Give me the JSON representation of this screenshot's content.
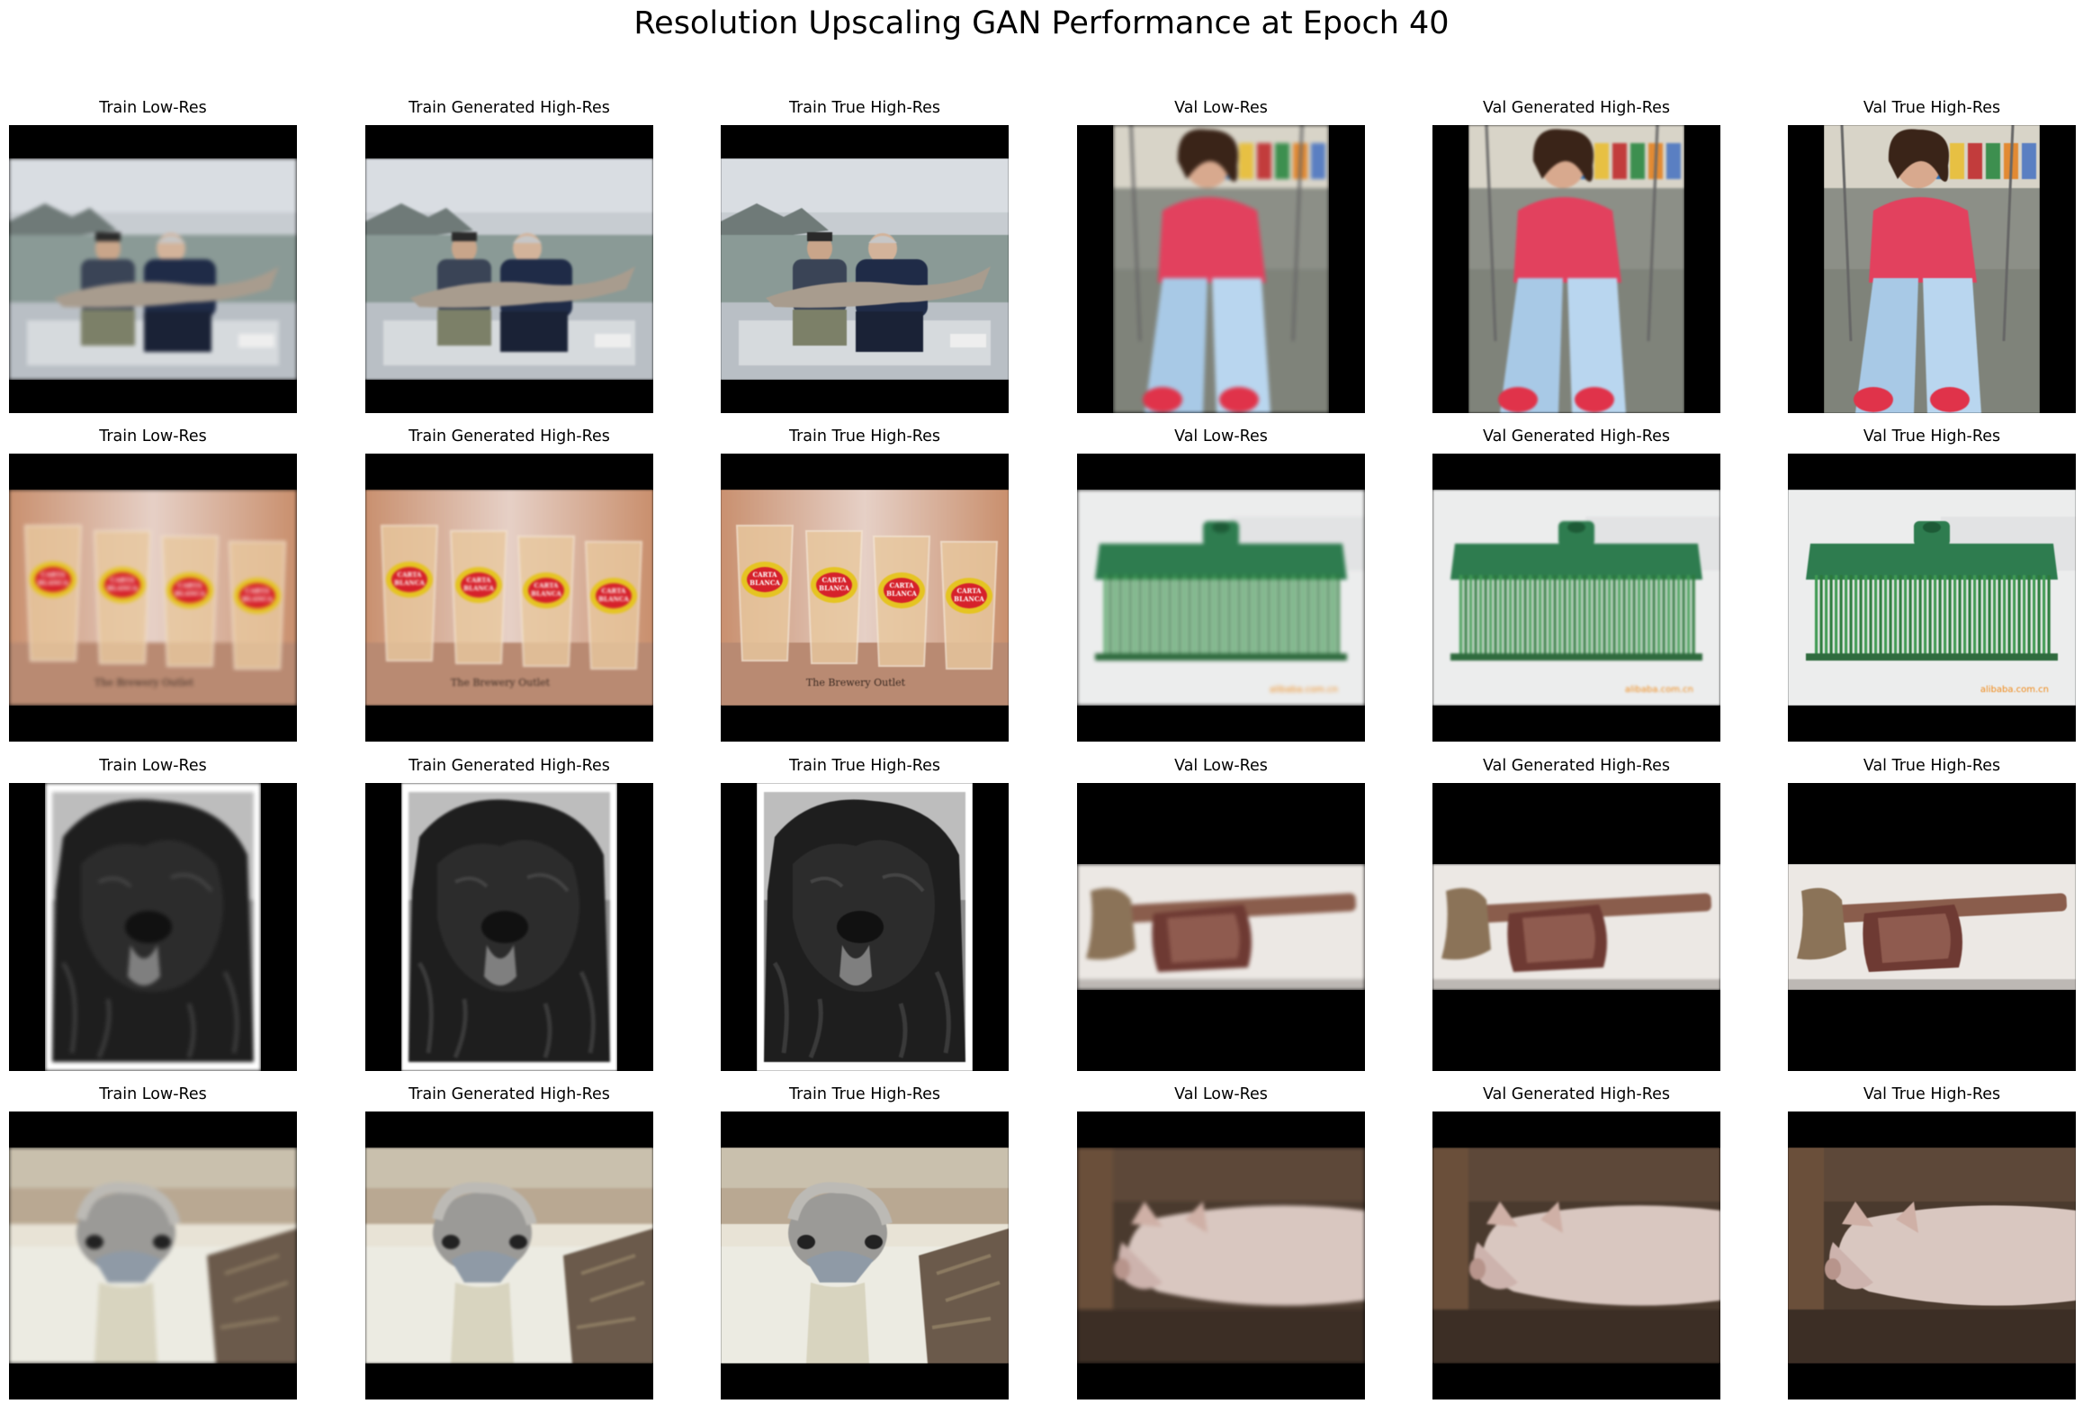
{
  "figure": {
    "title": "Resolution Upscaling GAN Performance at Epoch 40"
  },
  "rows": [
    {
      "panels": [
        {
          "title": "Train Low-Res",
          "subject": "fishermen-sturgeon-photo",
          "quality": "low"
        },
        {
          "title": "Train Generated High-Res",
          "subject": "fishermen-sturgeon-photo",
          "quality": "gen"
        },
        {
          "title": "Train True High-Res",
          "subject": "fishermen-sturgeon-photo",
          "quality": "true"
        },
        {
          "title": "Val Low-Res",
          "subject": "girl-on-swing-photo",
          "quality": "low"
        },
        {
          "title": "Val Generated High-Res",
          "subject": "girl-on-swing-photo",
          "quality": "gen"
        },
        {
          "title": "Val True High-Res",
          "subject": "girl-on-swing-photo",
          "quality": "true"
        }
      ]
    },
    {
      "panels": [
        {
          "title": "Train Low-Res",
          "subject": "beer-glasses-photo",
          "quality": "low"
        },
        {
          "title": "Train Generated High-Res",
          "subject": "beer-glasses-photo",
          "quality": "gen"
        },
        {
          "title": "Train True High-Res",
          "subject": "beer-glasses-photo",
          "quality": "true"
        },
        {
          "title": "Val Low-Res",
          "subject": "broom-head-photo",
          "quality": "low"
        },
        {
          "title": "Val Generated High-Res",
          "subject": "broom-head-photo",
          "quality": "gen"
        },
        {
          "title": "Val True High-Res",
          "subject": "broom-head-photo",
          "quality": "true"
        }
      ]
    },
    {
      "panels": [
        {
          "title": "Train Low-Res",
          "subject": "shaggy-dog-bw-photo",
          "quality": "low"
        },
        {
          "title": "Train Generated High-Res",
          "subject": "shaggy-dog-bw-photo",
          "quality": "gen"
        },
        {
          "title": "Train True High-Res",
          "subject": "shaggy-dog-bw-photo",
          "quality": "true"
        },
        {
          "title": "Val Low-Res",
          "subject": "axe-photo",
          "quality": "low"
        },
        {
          "title": "Val Generated High-Res",
          "subject": "axe-photo",
          "quality": "gen"
        },
        {
          "title": "Val True High-Res",
          "subject": "axe-photo",
          "quality": "true"
        }
      ]
    },
    {
      "panels": [
        {
          "title": "Train Low-Res",
          "subject": "ostrich-photo",
          "quality": "low"
        },
        {
          "title": "Train Generated High-Res",
          "subject": "ostrich-photo",
          "quality": "gen"
        },
        {
          "title": "Train True High-Res",
          "subject": "ostrich-photo",
          "quality": "true"
        },
        {
          "title": "Val Low-Res",
          "subject": "pig-photo",
          "quality": "low"
        },
        {
          "title": "Val Generated High-Res",
          "subject": "pig-photo",
          "quality": "gen"
        },
        {
          "title": "Val True High-Res",
          "subject": "pig-photo",
          "quality": "true"
        }
      ]
    }
  ],
  "image_text": {
    "glasses_label": "The Brewery Outlet",
    "glasses_brand_line1": "CARTA",
    "glasses_brand_line2": "BLANCA",
    "broom_watermark": "alibaba.com.cn"
  }
}
